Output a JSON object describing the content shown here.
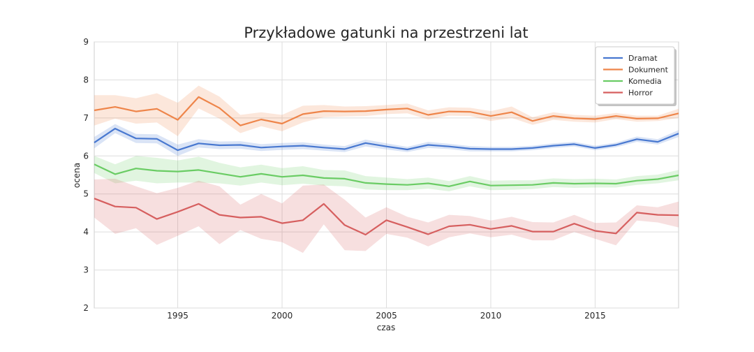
{
  "chart_data": {
    "type": "line",
    "title": "Przykładowe gatunki na przestrzeni lat",
    "xlabel": "czas",
    "ylabel": "ocena",
    "xlim": [
      1991,
      2019
    ],
    "ylim": [
      2,
      9
    ],
    "x_ticks": [
      1995,
      2000,
      2005,
      2010,
      2015
    ],
    "y_ticks": [
      2,
      3,
      4,
      5,
      6,
      7,
      8,
      9
    ],
    "grid": true,
    "legend_position": "top-right",
    "x": [
      1991,
      1992,
      1993,
      1994,
      1995,
      1996,
      1997,
      1998,
      1999,
      2000,
      2001,
      2002,
      2003,
      2004,
      2005,
      2006,
      2007,
      2008,
      2009,
      2010,
      2011,
      2012,
      2013,
      2014,
      2015,
      2016,
      2017,
      2018,
      2019
    ],
    "series": [
      {
        "name": "Dramat",
        "color": "#4878d0",
        "values": [
          6.35,
          6.72,
          6.46,
          6.45,
          6.15,
          6.33,
          6.28,
          6.29,
          6.22,
          6.25,
          6.27,
          6.22,
          6.18,
          6.34,
          6.25,
          6.17,
          6.29,
          6.25,
          6.19,
          6.18,
          6.18,
          6.21,
          6.27,
          6.31,
          6.21,
          6.29,
          6.44,
          6.37,
          6.59
        ],
        "lower": [
          6.2,
          6.6,
          6.34,
          6.33,
          6.0,
          6.22,
          6.18,
          6.19,
          6.13,
          6.16,
          6.18,
          6.14,
          6.1,
          6.25,
          6.17,
          6.1,
          6.21,
          6.18,
          6.12,
          6.12,
          6.12,
          6.15,
          6.21,
          6.25,
          6.15,
          6.23,
          6.37,
          6.3,
          6.5
        ],
        "upper": [
          6.5,
          6.84,
          6.58,
          6.57,
          6.3,
          6.44,
          6.38,
          6.39,
          6.31,
          6.34,
          6.36,
          6.3,
          6.26,
          6.43,
          6.33,
          6.24,
          6.37,
          6.32,
          6.26,
          6.24,
          6.24,
          6.27,
          6.33,
          6.37,
          6.27,
          6.35,
          6.51,
          6.44,
          6.68
        ]
      },
      {
        "name": "Dokument",
        "color": "#ee854a",
        "values": [
          7.2,
          7.29,
          7.17,
          7.24,
          6.95,
          7.55,
          7.26,
          6.8,
          6.96,
          6.85,
          7.1,
          7.18,
          7.17,
          7.18,
          7.22,
          7.25,
          7.08,
          7.17,
          7.16,
          7.05,
          7.15,
          6.92,
          7.05,
          6.99,
          6.97,
          7.05,
          6.98,
          6.99,
          7.12
        ],
        "lower": [
          6.8,
          6.98,
          6.85,
          6.88,
          6.52,
          7.25,
          6.98,
          6.6,
          6.78,
          6.65,
          6.88,
          7.02,
          7.04,
          7.05,
          7.1,
          7.12,
          6.96,
          7.06,
          7.05,
          6.92,
          7.0,
          6.82,
          6.95,
          6.9,
          6.88,
          6.97,
          6.9,
          6.92,
          7.0
        ],
        "upper": [
          7.6,
          7.6,
          7.52,
          7.65,
          7.4,
          7.85,
          7.56,
          7.08,
          7.15,
          7.08,
          7.32,
          7.34,
          7.3,
          7.31,
          7.34,
          7.38,
          7.2,
          7.28,
          7.27,
          7.18,
          7.3,
          7.02,
          7.15,
          7.08,
          7.06,
          7.13,
          7.06,
          7.06,
          7.24
        ]
      },
      {
        "name": "Komedia",
        "color": "#6acc64",
        "values": [
          5.78,
          5.52,
          5.67,
          5.61,
          5.59,
          5.63,
          5.54,
          5.45,
          5.53,
          5.45,
          5.49,
          5.42,
          5.4,
          5.29,
          5.26,
          5.24,
          5.28,
          5.2,
          5.33,
          5.22,
          5.23,
          5.24,
          5.29,
          5.27,
          5.28,
          5.27,
          5.35,
          5.39,
          5.49
        ],
        "lower": [
          5.55,
          5.28,
          5.35,
          5.28,
          5.3,
          5.3,
          5.28,
          5.22,
          5.3,
          5.23,
          5.27,
          5.22,
          5.2,
          5.12,
          5.1,
          5.1,
          5.14,
          5.07,
          5.2,
          5.1,
          5.11,
          5.13,
          5.18,
          5.16,
          5.17,
          5.17,
          5.24,
          5.28,
          5.36
        ],
        "upper": [
          6.0,
          5.78,
          6.0,
          5.95,
          5.88,
          5.98,
          5.82,
          5.7,
          5.77,
          5.68,
          5.73,
          5.63,
          5.62,
          5.47,
          5.43,
          5.39,
          5.43,
          5.34,
          5.47,
          5.35,
          5.36,
          5.36,
          5.41,
          5.39,
          5.4,
          5.38,
          5.47,
          5.51,
          5.63
        ]
      },
      {
        "name": "Horror",
        "color": "#d65f5f",
        "values": [
          4.88,
          4.67,
          4.64,
          4.34,
          4.53,
          4.74,
          4.45,
          4.38,
          4.4,
          4.23,
          4.31,
          4.74,
          4.18,
          3.93,
          4.31,
          4.13,
          3.94,
          4.15,
          4.19,
          4.08,
          4.16,
          4.01,
          4.01,
          4.22,
          4.03,
          3.96,
          4.51,
          4.45,
          4.44
        ],
        "lower": [
          4.38,
          3.95,
          4.1,
          3.66,
          3.9,
          4.15,
          3.68,
          4.05,
          3.82,
          3.73,
          3.45,
          4.2,
          3.52,
          3.5,
          3.95,
          3.85,
          3.62,
          3.86,
          3.96,
          3.86,
          3.93,
          3.78,
          3.78,
          4.0,
          3.82,
          3.65,
          4.3,
          4.25,
          4.12
        ],
        "upper": [
          5.38,
          5.4,
          5.2,
          5.02,
          5.16,
          5.35,
          5.2,
          4.72,
          5.0,
          4.75,
          5.22,
          5.25,
          4.85,
          4.38,
          4.65,
          4.4,
          4.25,
          4.45,
          4.42,
          4.3,
          4.4,
          4.26,
          4.25,
          4.45,
          4.24,
          4.25,
          4.7,
          4.65,
          4.8
        ]
      }
    ]
  }
}
